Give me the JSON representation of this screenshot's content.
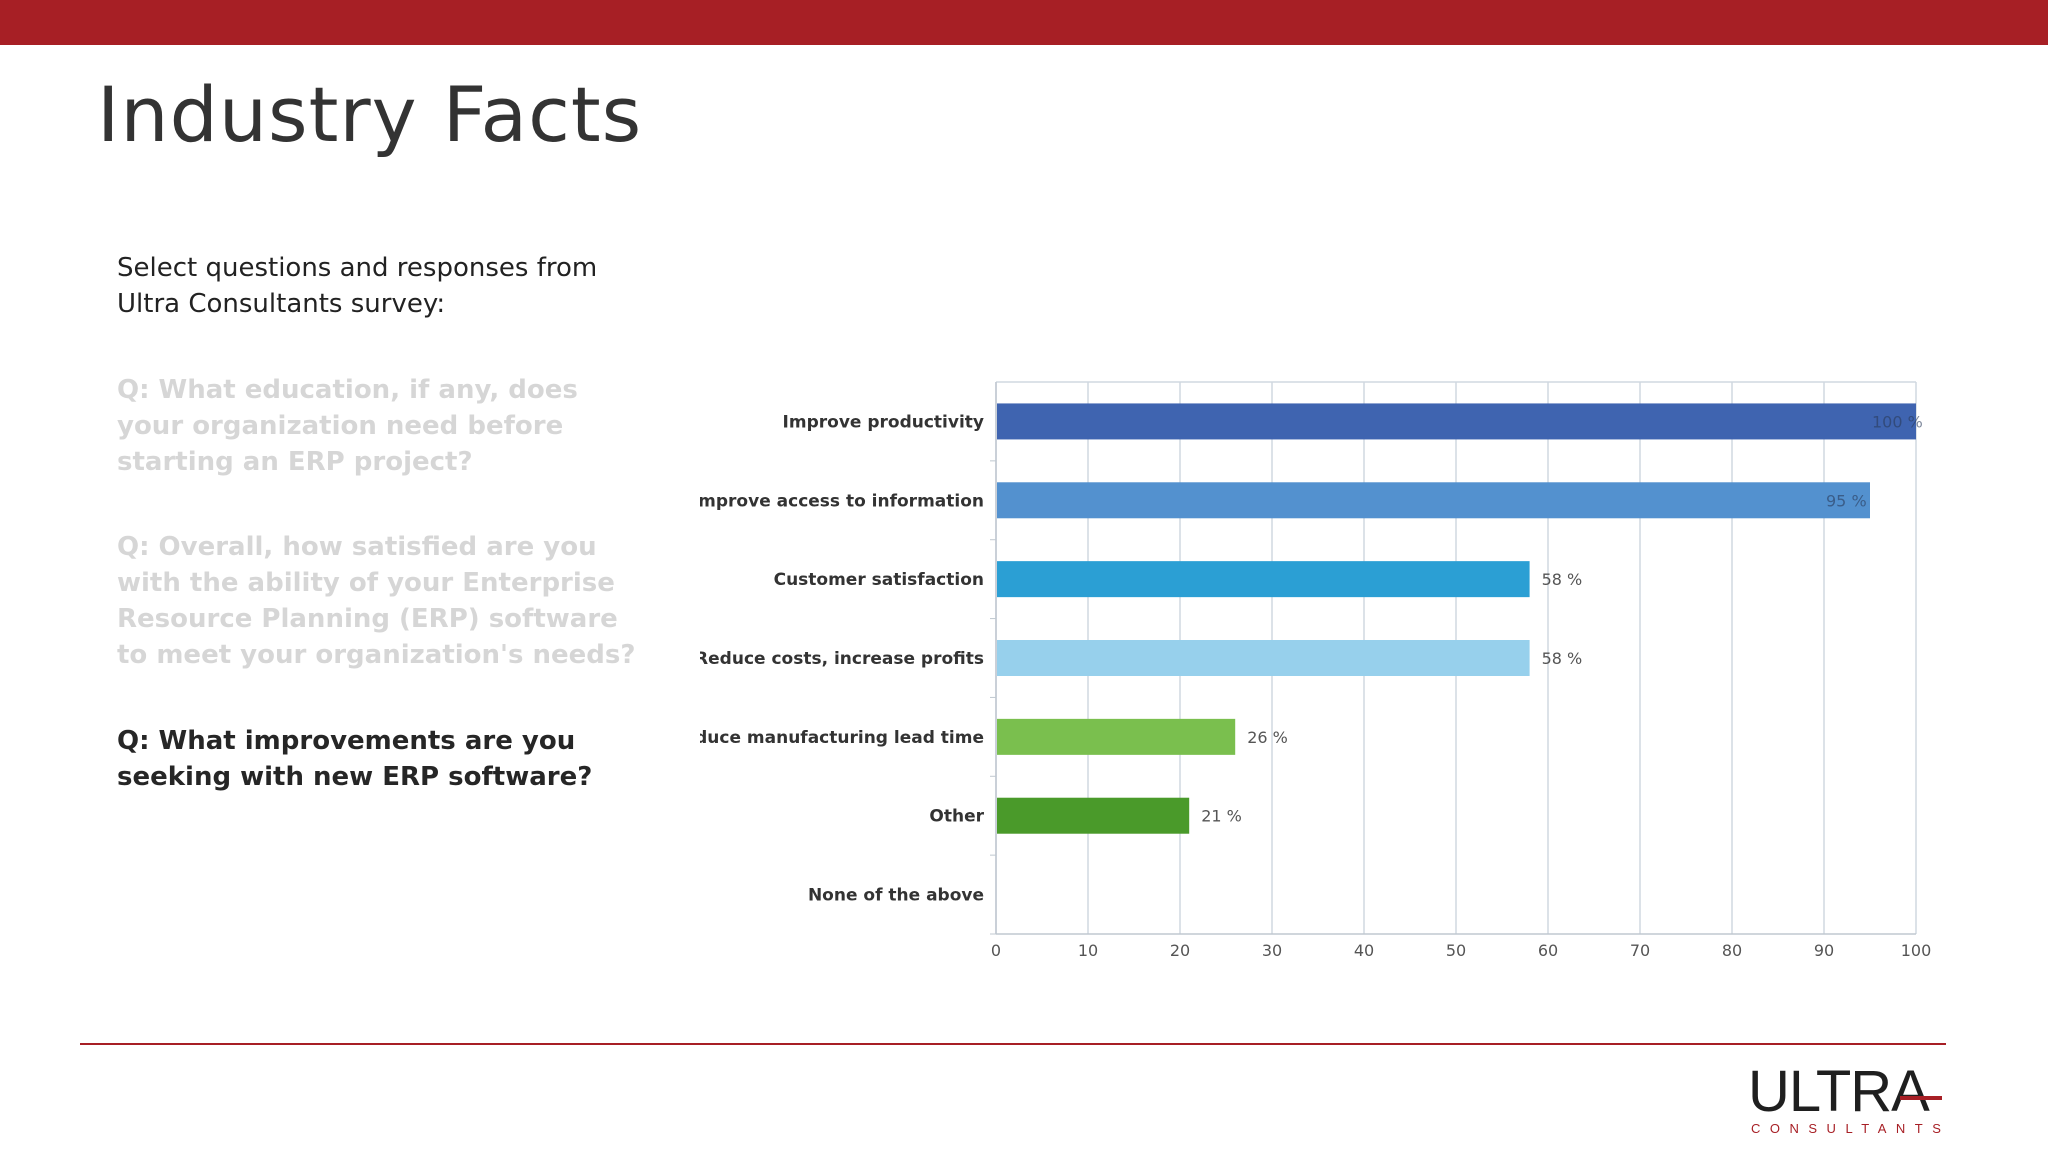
{
  "slide": {
    "title": "Industry Facts",
    "intro": "Select questions and responses from Ultra Consultants survey:",
    "questions": [
      "Q: What education, if any, does your organization need before starting an ERP project?",
      "Q: Overall, how satisfied are you with the ability of your Enterprise Resource Planning (ERP) software to meet your organization's needs?",
      "Q: What improvements are you seeking with new ERP software?"
    ]
  },
  "logo": {
    "wordmark": "ULTRA",
    "subtitle": "CONSULTANTS"
  },
  "colors": {
    "brand": "#a71f25",
    "active_question": "#262626",
    "faded_question": "#d6d6d6"
  },
  "chart_data": {
    "type": "bar",
    "orientation": "horizontal",
    "categories": [
      "Improve productivity",
      "Improve access to information",
      "Customer satisfaction",
      "Reduce costs, increase profits",
      "Reduce manufacturing lead time",
      "Other",
      "None of the above"
    ],
    "values": [
      100,
      95,
      58,
      58,
      26,
      21,
      0
    ],
    "value_labels": [
      "100 %",
      "95 %",
      "58 %",
      "58 %",
      "26 %",
      "21 %",
      ""
    ],
    "bar_colors": [
      "#3f64b0",
      "#5391cf",
      "#2b9fd4",
      "#97d0ec",
      "#7abf4e",
      "#4a9a2a",
      "#cccccc"
    ],
    "xlim": [
      0,
      100
    ],
    "xticks": [
      0,
      10,
      20,
      30,
      40,
      50,
      60,
      70,
      80,
      90,
      100
    ],
    "grid": true,
    "title": "",
    "xlabel": "",
    "ylabel": ""
  }
}
